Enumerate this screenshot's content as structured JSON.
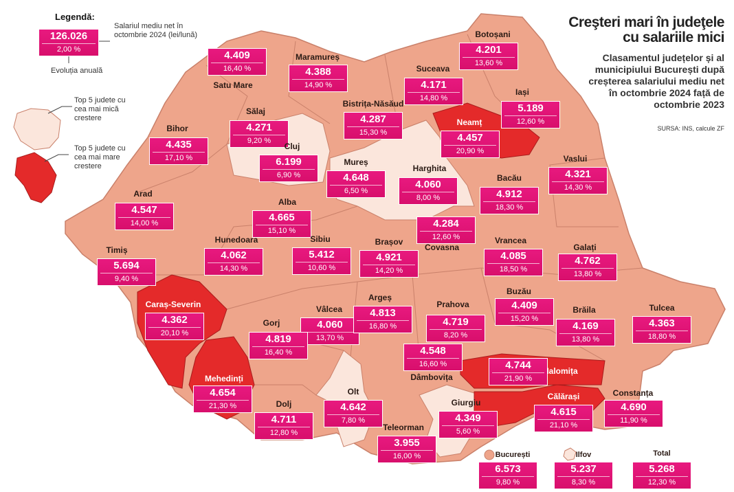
{
  "header": {
    "title": "Creşteri mari în judeţele cu salariile mici",
    "subtitle": "Clasamentul județelor și al municipiului București după creșterea salariului mediu net în octombrie 2024 față de octombrie 2023",
    "source": "SURSA: INS, calcule ZF"
  },
  "legend": {
    "title": "Legendă:",
    "sample_salary": "126.026",
    "sample_growth": "2,00 %",
    "salary_note": "Salariul mediu net în octombrie 2024 (lei/lună)",
    "growth_note": "Evoluția anuală",
    "min_note": "Top 5 judete cu cea mai mică crestere",
    "max_note": "Top 5 judete cu cea mai mare crestere"
  },
  "counties": [
    {
      "name": "Satu Mare",
      "salary": "4.409",
      "growth": "16,40 %"
    },
    {
      "name": "Maramureș",
      "salary": "4.388",
      "growth": "14,90 %"
    },
    {
      "name": "Botoșani",
      "salary": "4.201",
      "growth": "13,60 %"
    },
    {
      "name": "Suceava",
      "salary": "4.171",
      "growth": "14,80 %"
    },
    {
      "name": "Iași",
      "salary": "5.189",
      "growth": "12,60 %"
    },
    {
      "name": "Bistrița-Năsăud",
      "salary": "4.287",
      "growth": "15,30 %"
    },
    {
      "name": "Sălaj",
      "salary": "4.271",
      "growth": "9,20 %"
    },
    {
      "name": "Bihor",
      "salary": "4.435",
      "growth": "17,10 %"
    },
    {
      "name": "Neamț",
      "salary": "4.457",
      "growth": "20,90 %"
    },
    {
      "name": "Cluj",
      "salary": "6.199",
      "growth": "6,90 %"
    },
    {
      "name": "Mureș",
      "salary": "4.648",
      "growth": "6,50 %"
    },
    {
      "name": "Harghita",
      "salary": "4.060",
      "growth": "8,00 %"
    },
    {
      "name": "Vaslui",
      "salary": "4.321",
      "growth": "14,30 %"
    },
    {
      "name": "Bacău",
      "salary": "4.912",
      "growth": "18,30 %"
    },
    {
      "name": "Arad",
      "salary": "4.547",
      "growth": "14,00 %"
    },
    {
      "name": "Alba",
      "salary": "4.665",
      "growth": "15,10 %"
    },
    {
      "name": "Covasna",
      "salary": "4.284",
      "growth": "12,60 %"
    },
    {
      "name": "Hunedoara",
      "salary": "4.062",
      "growth": "14,30 %"
    },
    {
      "name": "Sibiu",
      "salary": "5.412",
      "growth": "10,60 %"
    },
    {
      "name": "Brașov",
      "salary": "4.921",
      "growth": "14,20 %"
    },
    {
      "name": "Vrancea",
      "salary": "4.085",
      "growth": "18,50 %"
    },
    {
      "name": "Galați",
      "salary": "4.762",
      "growth": "13,80 %"
    },
    {
      "name": "Timiș",
      "salary": "5.694",
      "growth": "9,40 %"
    },
    {
      "name": "Caraș-Severin",
      "salary": "4.362",
      "growth": "20,10 %"
    },
    {
      "name": "Vâlcea",
      "salary": "4.060",
      "growth": "13,70 %"
    },
    {
      "name": "Argeș",
      "salary": "4.813",
      "growth": "16,80 %"
    },
    {
      "name": "Prahova",
      "salary": "4.719",
      "growth": "8,20 %"
    },
    {
      "name": "Buzău",
      "salary": "4.409",
      "growth": "15,20 %"
    },
    {
      "name": "Brăila",
      "salary": "4.169",
      "growth": "13,80 %"
    },
    {
      "name": "Tulcea",
      "salary": "4.363",
      "growth": "18,80 %"
    },
    {
      "name": "Gorj",
      "salary": "4.819",
      "growth": "16,40 %"
    },
    {
      "name": "Dâmbovița",
      "salary": "4.548",
      "growth": "16,60 %"
    },
    {
      "name": "Ialomița",
      "salary": "4.744",
      "growth": "21,90 %"
    },
    {
      "name": "Mehedinți",
      "salary": "4.654",
      "growth": "21,30 %"
    },
    {
      "name": "Olt",
      "salary": "4.642",
      "growth": "7,80 %"
    },
    {
      "name": "Giurgiu",
      "salary": "4.349",
      "growth": "5,60 %"
    },
    {
      "name": "Constanța",
      "salary": "4.690",
      "growth": "11,90 %"
    },
    {
      "name": "Călărași",
      "salary": "4.615",
      "growth": "21,10 %"
    },
    {
      "name": "Dolj",
      "salary": "4.711",
      "growth": "12,80 %"
    },
    {
      "name": "Teleorman",
      "salary": "3.955",
      "growth": "16,00 %"
    }
  ],
  "summary": [
    {
      "name": "București",
      "salary": "6.573",
      "growth": "9,80 %"
    },
    {
      "name": "Ilfov",
      "salary": "5.237",
      "growth": "8,30 %"
    },
    {
      "name": "Total",
      "salary": "5.268",
      "growth": "12,30 %"
    }
  ]
}
